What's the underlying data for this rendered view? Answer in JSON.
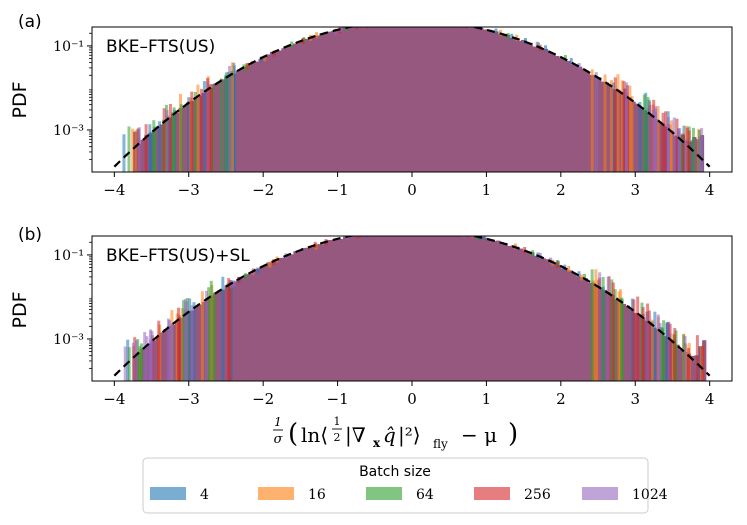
{
  "chart_data": [
    {
      "type": "bar",
      "panel_label": "(a)",
      "title": "BKE–FTS(US)",
      "ylabel": "PDF",
      "xlabel": "",
      "xlim": [
        -4.3,
        4.3
      ],
      "ylim_log10": [
        -4.0,
        -0.55
      ],
      "x_ticks": [
        "−4",
        "−3",
        "−2",
        "−1",
        "0",
        "1",
        "2",
        "3",
        "4"
      ],
      "y_ticks": [
        "10⁻¹",
        "10⁻³"
      ],
      "reference_curve": "standard normal N(0,1) — dashed black",
      "series": [
        {
          "name": "4",
          "color": "#1f77b4"
        },
        {
          "name": "16",
          "color": "#ff7f0e"
        },
        {
          "name": "64",
          "color": "#2ca02c"
        },
        {
          "name": "256",
          "color": "#d62728"
        },
        {
          "name": "1024",
          "color": "#9467bd"
        }
      ],
      "histogram_range": [
        -3.75,
        3.92
      ]
    },
    {
      "type": "bar",
      "panel_label": "(b)",
      "title": "BKE–FTS(US)+SL",
      "ylabel": "PDF",
      "xlabel": "σ⁻¹ ( ln⟨½|∇ₓq̂|²⟩_fly − μ )",
      "xlim": [
        -4.3,
        4.3
      ],
      "ylim_log10": [
        -4.0,
        -0.55
      ],
      "x_ticks": [
        "−4",
        "−3",
        "−2",
        "−1",
        "0",
        "1",
        "2",
        "3",
        "4"
      ],
      "y_ticks": [
        "10⁻¹",
        "10⁻³"
      ],
      "reference_curve": "standard normal N(0,1) — dashed black",
      "series": [
        {
          "name": "4",
          "color": "#1f77b4"
        },
        {
          "name": "16",
          "color": "#ff7f0e"
        },
        {
          "name": "64",
          "color": "#2ca02c"
        },
        {
          "name": "256",
          "color": "#d62728"
        },
        {
          "name": "1024",
          "color": "#9467bd"
        }
      ],
      "histogram_range": [
        -3.75,
        3.95
      ]
    }
  ],
  "legend": {
    "title": "Batch size",
    "entries": [
      {
        "label": "4",
        "color": "#1f77b4"
      },
      {
        "label": "16",
        "color": "#ff7f0e"
      },
      {
        "label": "64",
        "color": "#2ca02c"
      },
      {
        "label": "256",
        "color": "#d62728"
      },
      {
        "label": "1024",
        "color": "#9467bd"
      }
    ]
  },
  "xlabel_parts": {
    "frac_num": "1",
    "frac_den": "σ",
    "open": "(",
    "ln": "ln⟨",
    "half_num": "1",
    "half_den": "2",
    "grad": "|∇",
    "grad_sub": "x",
    "qhat": "q̂",
    "sq": "|²⟩",
    "fly": "fly",
    "minus_mu": "− μ",
    "close": ")"
  },
  "colors": {
    "overlap_fill": "#96587e",
    "axis": "#000000"
  }
}
